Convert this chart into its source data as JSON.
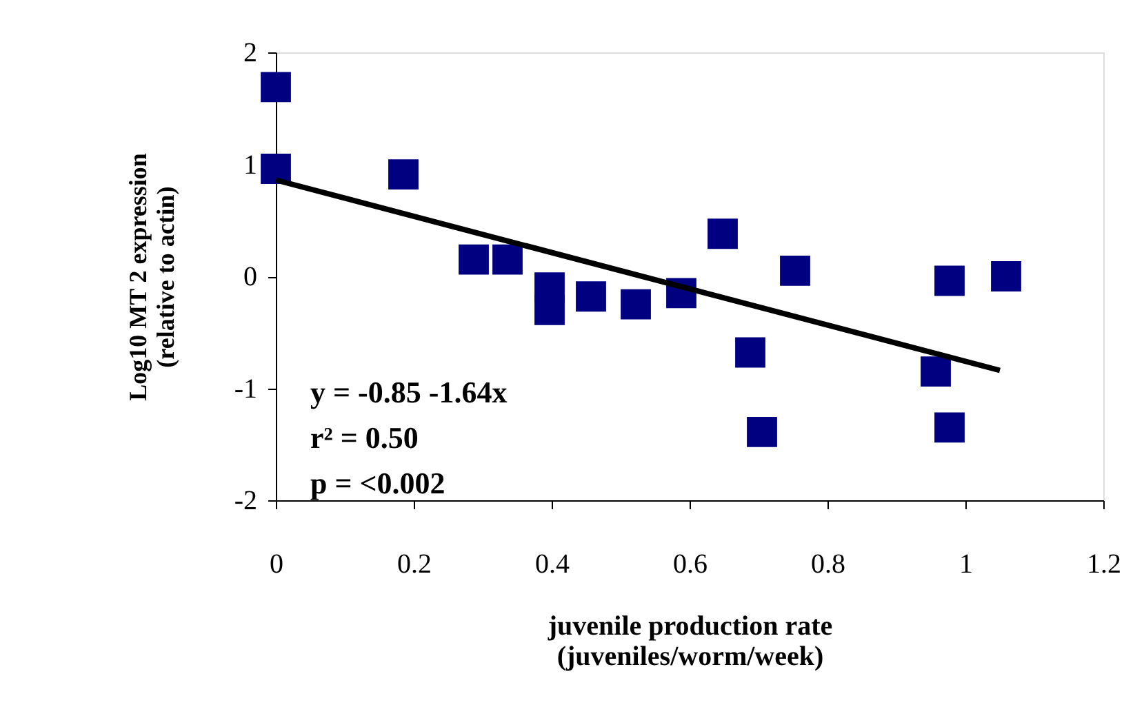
{
  "chart_data": {
    "type": "scatter",
    "xlabel": "juvenile production rate\n(juveniles/worm/week)",
    "ylabel": "Log10 MT 2 expression\n(relative to actin)",
    "xlim": [
      0,
      1.2
    ],
    "xticks": [
      0,
      0.2,
      0.4,
      0.6,
      0.8,
      1,
      1.2
    ],
    "ylim": [
      -2,
      2
    ],
    "yticks": [
      -2,
      -1,
      0,
      1,
      2
    ],
    "grid": false,
    "series": [
      {
        "color": "#000080",
        "marker": "square",
        "x": [
          0,
          0,
          0.185,
          0.287,
          0.336,
          0.397,
          0.397,
          0.457,
          0.522,
          0.588,
          0.648,
          0.688,
          0.705,
          0.753,
          0.957,
          0.977,
          0.977,
          1.059
        ],
        "values": [
          1.69,
          0.96,
          0.91,
          0.15,
          0.15,
          -0.1,
          -0.3,
          -0.18,
          -0.25,
          -0.15,
          0.38,
          -0.68,
          -1.39,
          0.05,
          -0.85,
          -0.04,
          -1.35,
          0.0
        ]
      },
      {
        "type": "line",
        "color": "#000000",
        "x": [
          0,
          1.05
        ],
        "values": [
          0.86,
          -0.84
        ]
      }
    ],
    "annotations": [
      "y = -0.85 -1.64x",
      "r² = 0.50",
      "p = <0.002"
    ]
  }
}
